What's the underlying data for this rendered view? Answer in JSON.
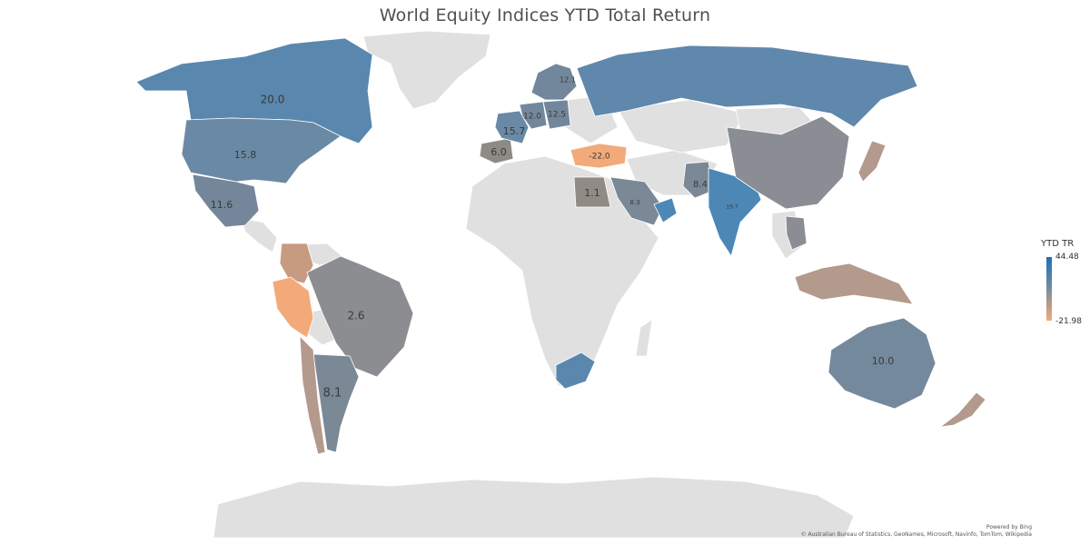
{
  "title": "World Equity Indices YTD Total Return",
  "legend": {
    "title": "YTD TR",
    "max": "44.48",
    "min": "-21.98",
    "colors": {
      "high": "#1f6fb4",
      "mid": "#6b8aa3",
      "low": "#f2aa7a",
      "neutral": "#e0e0e0"
    }
  },
  "credits": {
    "powered_by": "Powered by Bing",
    "sources": "© Australian Bureau of Statistics, GeoNames, Microsoft, Navinfo, TomTom, Wikipedia"
  },
  "regions": [
    {
      "id": "canada",
      "label": "20.0",
      "color": "#5a87ad"
    },
    {
      "id": "usa",
      "label": "15.8",
      "color": "#6a89a5"
    },
    {
      "id": "mexico",
      "label": "11.6",
      "color": "#74879a"
    },
    {
      "id": "brazil",
      "label": "2.6",
      "color": "#8c8d90"
    },
    {
      "id": "argentina",
      "label": "8.1",
      "color": "#7b8896"
    },
    {
      "id": "peru",
      "label": "",
      "color": "#f2aa7a"
    },
    {
      "id": "colombia",
      "label": "",
      "color": "#c79b80"
    },
    {
      "id": "chile",
      "label": "",
      "color": "#b49a8c"
    },
    {
      "id": "spain",
      "label": "6.0",
      "color": "#8e8a86"
    },
    {
      "id": "france",
      "label": "15.7",
      "color": "#6a89a5"
    },
    {
      "id": "germany",
      "label": "12.0",
      "color": "#72879b"
    },
    {
      "id": "poland",
      "label": "12.5",
      "color": "#72879b"
    },
    {
      "id": "scandinavia",
      "label": "12.1",
      "color": "#72879b"
    },
    {
      "id": "russia",
      "label": "",
      "color": "#5f88ac"
    },
    {
      "id": "turkey",
      "label": "-22.0",
      "color": "#f2aa7a"
    },
    {
      "id": "egypt",
      "label": "1.1",
      "color": "#918a85"
    },
    {
      "id": "saudi",
      "label": "8.3",
      "color": "#7b8896"
    },
    {
      "id": "pakistan",
      "label": "8.4",
      "color": "#7b8896"
    },
    {
      "id": "india",
      "label": "19.7",
      "color": "#4c87b6"
    },
    {
      "id": "china",
      "label": "",
      "color": "#8a8e94"
    },
    {
      "id": "japan",
      "label": "",
      "color": "#b49a8c"
    },
    {
      "id": "indonesia",
      "label": "",
      "color": "#b49a8c"
    },
    {
      "id": "australia",
      "label": "10.0",
      "color": "#75899c"
    },
    {
      "id": "nz",
      "label": "",
      "color": "#b49a8c"
    },
    {
      "id": "southafrica",
      "label": "",
      "color": "#5a87ad"
    },
    {
      "id": "uae",
      "label": "",
      "color": "#4c87b6"
    },
    {
      "id": "thailand",
      "label": "",
      "color": "#8a8e94"
    }
  ]
}
